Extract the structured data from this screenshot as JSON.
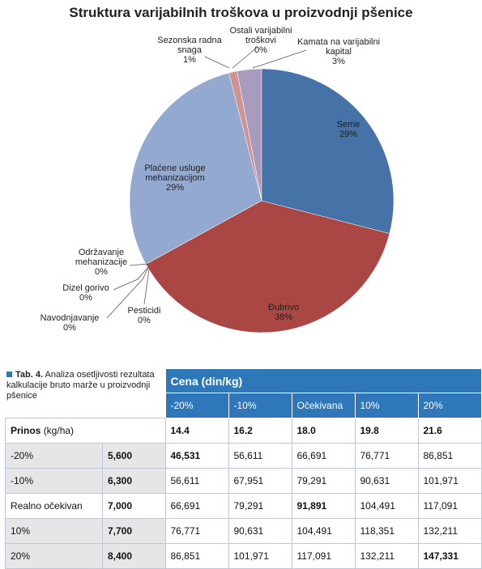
{
  "chart_data": {
    "type": "pie",
    "title": "Struktura varijabilnih troškova u proizvodnji pšenice",
    "categories": [
      "Seme",
      "Đubrivo",
      "Pesticidi",
      "Navodnjavanje",
      "Dizel gorivo",
      "Održavanje mehanizacije",
      "Plaćene usluge mehanizacijom",
      "Sezonska radna snaga",
      "Ostali varijabilni troškovi",
      "Kamata na varijabilni kapital"
    ],
    "values": [
      29,
      38,
      0,
      0,
      0,
      0,
      29,
      1,
      0,
      3
    ],
    "value_labels": [
      "29%",
      "38%",
      "0%",
      "0%",
      "0%",
      "0%",
      "29%",
      "1%",
      "0%",
      "3%"
    ],
    "colors": [
      "#4572a7",
      "#aa4643",
      "#89a54e",
      "#71588f",
      "#4198af",
      "#db843d",
      "#93a9cf",
      "#d19392",
      "#b9cd96",
      "#a99bbd"
    ]
  },
  "table": {
    "caption_label": "Tab. 4.",
    "caption": "Analiza osetljivosti rezultata kalkulacije bruto marže u proizvodnji pšenice",
    "header": "Cena (din/kg)",
    "columns": [
      "-20%",
      "-10%",
      "Očekivana",
      "10%",
      "20%"
    ],
    "yield_row": {
      "label": "Prinos",
      "unit": "(kg/ha)",
      "values": [
        "14.4",
        "16.2",
        "18.0",
        "19.8",
        "21.6"
      ]
    },
    "rows": [
      [
        "-20%",
        "5,600",
        "46,531",
        "56,611",
        "66,691",
        "76,771",
        "86,851"
      ],
      [
        "-10%",
        "6,300",
        "56,611",
        "67,951",
        "79,291",
        "90,631",
        "101,971"
      ],
      [
        "Realno očekivan",
        "7,000",
        "66,691",
        "79,291",
        "91,891",
        "104,491",
        "117,091"
      ],
      [
        "10%",
        "7,700",
        "76,771",
        "90,631",
        "104,491",
        "118,351",
        "132,211"
      ],
      [
        "20%",
        "8,400",
        "86,851",
        "101,971",
        "117,091",
        "132,211",
        "147,331"
      ]
    ]
  }
}
